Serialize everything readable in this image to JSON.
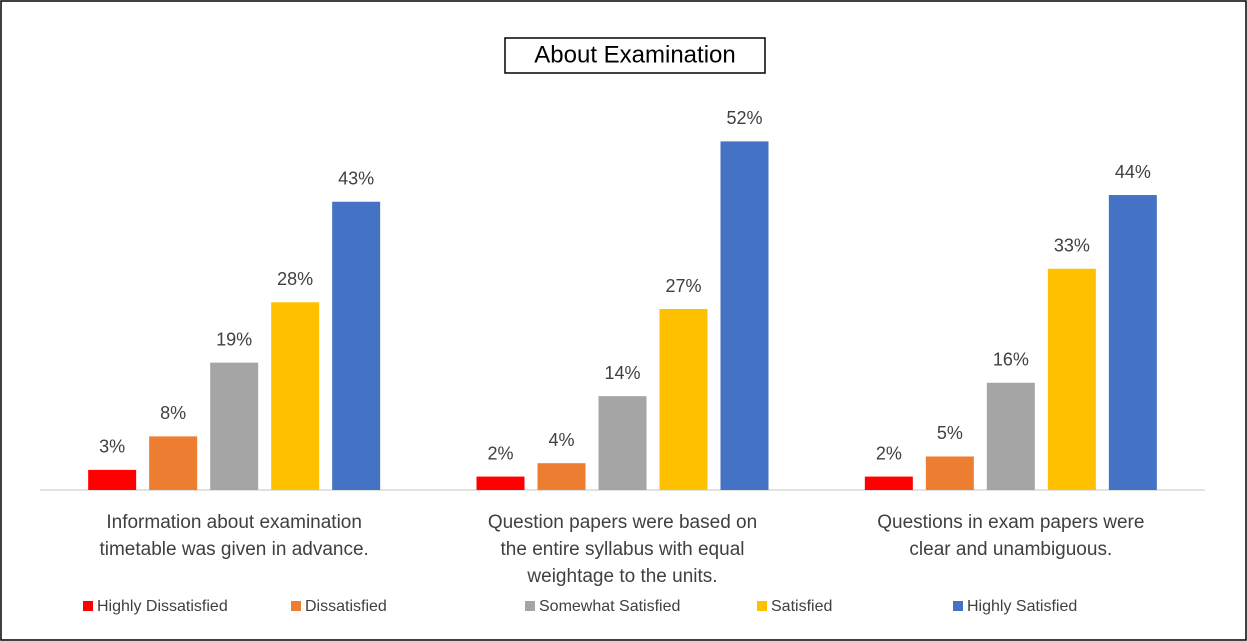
{
  "chart_data": {
    "type": "bar",
    "title": "About Examination",
    "categories": [
      "Information about examination timetable was given in advance.",
      "Question papers were based on the entire syllabus with equal weightage to the units.",
      "Questions in exam papers were clear and unambiguous."
    ],
    "series": [
      {
        "name": "Highly Dissatisfied",
        "color": "#ff0000",
        "values": [
          3,
          2,
          2
        ],
        "value_labels": [
          "3%",
          "2%",
          "2%"
        ]
      },
      {
        "name": "Dissatisfied",
        "color": "#ed7d31",
        "values": [
          8,
          4,
          5
        ],
        "value_labels": [
          "8%",
          "4%",
          "5%"
        ]
      },
      {
        "name": "Somewhat Satisfied",
        "color": "#a5a5a5",
        "values": [
          19,
          14,
          16
        ],
        "value_labels": [
          "19%",
          "14%",
          "16%"
        ]
      },
      {
        "name": "Satisfied",
        "color": "#ffc000",
        "values": [
          28,
          27,
          33
        ],
        "value_labels": [
          "28%",
          "27%",
          "33%"
        ]
      },
      {
        "name": "Highly Satisfied",
        "color": "#4472c4",
        "values": [
          43,
          52,
          44
        ],
        "value_labels": [
          "43%",
          "52%",
          "44%"
        ]
      }
    ],
    "ylim": [
      0,
      54
    ],
    "legend": "bottom"
  }
}
